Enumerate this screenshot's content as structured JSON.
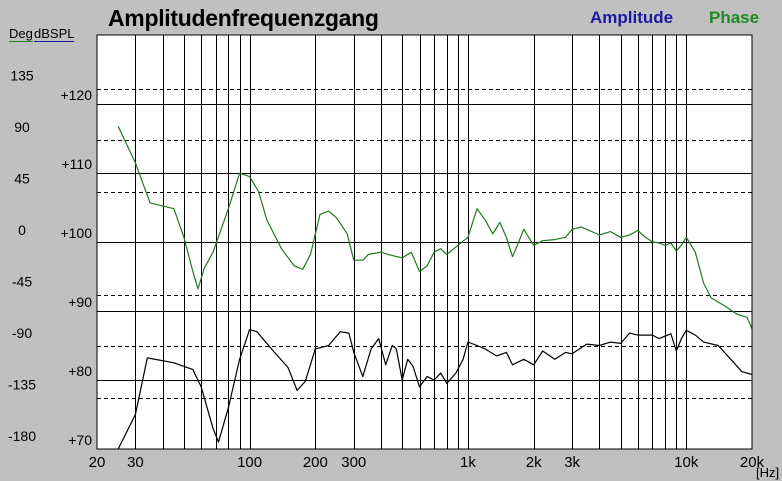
{
  "title": "Amplitudenfrequenzgang",
  "legend": {
    "amplitude": "Amplitude",
    "phase": "Phase"
  },
  "units": {
    "deg": "Deg",
    "db": "dBSPL",
    "x": "[Hz]"
  },
  "colors": {
    "amplitude": "#1a1aa0",
    "phase": "#1e8a1e",
    "curve_amplitude": "#000000",
    "curve_phase": "#1e7a1e",
    "background": "#c0c0c0",
    "plot_bg": "#ffffff"
  },
  "chart_data": {
    "type": "line",
    "title": "Amplitudenfrequenzgang",
    "x_scale": "log",
    "xlim": [
      20,
      20000
    ],
    "x_tick_labels": [
      {
        "x": 20,
        "label": "20"
      },
      {
        "x": 30,
        "label": "30"
      },
      {
        "x": 100,
        "label": "100"
      },
      {
        "x": 200,
        "label": "200"
      },
      {
        "x": 300,
        "label": "300"
      },
      {
        "x": 1000,
        "label": "1k"
      },
      {
        "x": 2000,
        "label": "2k"
      },
      {
        "x": 3000,
        "label": "3k"
      },
      {
        "x": 10000,
        "label": "10k"
      },
      {
        "x": 20000,
        "label": "20k"
      }
    ],
    "y_left_labels": [
      "135",
      "90",
      "45",
      "0",
      "-45",
      "-90",
      "-135",
      "-180"
    ],
    "y_right_labels": [
      "+120",
      "+110",
      "+100",
      "+90",
      "+80",
      "+70"
    ],
    "ylim_amplitude": [
      70,
      125
    ],
    "ylim_phase": [
      -180,
      180
    ],
    "grid": true,
    "series": [
      {
        "name": "Amplitude",
        "unit": "dBSPL",
        "points": [
          [
            25,
            70
          ],
          [
            30,
            75
          ],
          [
            34,
            83.2
          ],
          [
            45,
            82.5
          ],
          [
            55,
            81.5
          ],
          [
            60,
            79
          ],
          [
            68,
            73
          ],
          [
            72,
            71
          ],
          [
            80,
            76
          ],
          [
            90,
            83
          ],
          [
            100,
            87.3
          ],
          [
            108,
            87
          ],
          [
            130,
            84
          ],
          [
            150,
            81.8
          ],
          [
            165,
            78.5
          ],
          [
            180,
            79.8
          ],
          [
            200,
            84.5
          ],
          [
            230,
            85
          ],
          [
            260,
            87
          ],
          [
            285,
            86.8
          ],
          [
            300,
            84
          ],
          [
            330,
            80.5
          ],
          [
            360,
            84.5
          ],
          [
            390,
            86
          ],
          [
            420,
            82.2
          ],
          [
            450,
            85
          ],
          [
            470,
            84.5
          ],
          [
            500,
            80
          ],
          [
            530,
            83
          ],
          [
            560,
            82
          ],
          [
            600,
            79
          ],
          [
            650,
            80.5
          ],
          [
            700,
            80
          ],
          [
            750,
            81
          ],
          [
            800,
            79.5
          ],
          [
            880,
            81
          ],
          [
            950,
            83
          ],
          [
            1000,
            85.5
          ],
          [
            1100,
            85
          ],
          [
            1200,
            84.5
          ],
          [
            1350,
            83.5
          ],
          [
            1500,
            84
          ],
          [
            1600,
            82.2
          ],
          [
            1800,
            83
          ],
          [
            2000,
            82.2
          ],
          [
            2200,
            84.2
          ],
          [
            2500,
            83
          ],
          [
            2800,
            84
          ],
          [
            3000,
            83.8
          ],
          [
            3500,
            85.2
          ],
          [
            4000,
            85
          ],
          [
            4500,
            85.5
          ],
          [
            5000,
            85.3
          ],
          [
            5500,
            86.8
          ],
          [
            6000,
            86.5
          ],
          [
            7000,
            86.5
          ],
          [
            7500,
            86
          ],
          [
            8500,
            86.7
          ],
          [
            9000,
            84.2
          ],
          [
            9500,
            86
          ],
          [
            10000,
            87.2
          ],
          [
            11000,
            86.5
          ],
          [
            12000,
            85.5
          ],
          [
            14000,
            85
          ],
          [
            16000,
            83
          ],
          [
            18000,
            81.2
          ],
          [
            20000,
            80.8
          ]
        ]
      },
      {
        "name": "Phase",
        "unit": "Deg",
        "points": [
          [
            25,
            102
          ],
          [
            30,
            70
          ],
          [
            35,
            35
          ],
          [
            45,
            30
          ],
          [
            50,
            5
          ],
          [
            55,
            -25
          ],
          [
            58,
            -40
          ],
          [
            62,
            -22
          ],
          [
            68,
            -8
          ],
          [
            80,
            30
          ],
          [
            90,
            61
          ],
          [
            100,
            58
          ],
          [
            110,
            45
          ],
          [
            120,
            20
          ],
          [
            140,
            -5
          ],
          [
            160,
            -20
          ],
          [
            175,
            -23
          ],
          [
            190,
            -10
          ],
          [
            210,
            25
          ],
          [
            230,
            28
          ],
          [
            250,
            22
          ],
          [
            280,
            8
          ],
          [
            300,
            -15
          ],
          [
            330,
            -15
          ],
          [
            350,
            -10
          ],
          [
            400,
            -8
          ],
          [
            430,
            -10
          ],
          [
            500,
            -13
          ],
          [
            550,
            -8
          ],
          [
            600,
            -25
          ],
          [
            650,
            -20
          ],
          [
            700,
            -8
          ],
          [
            750,
            -5
          ],
          [
            800,
            -10
          ],
          [
            900,
            -2
          ],
          [
            1000,
            5
          ],
          [
            1100,
            30
          ],
          [
            1200,
            20
          ],
          [
            1300,
            8
          ],
          [
            1400,
            18
          ],
          [
            1500,
            5
          ],
          [
            1600,
            -12
          ],
          [
            1700,
            0
          ],
          [
            1800,
            12
          ],
          [
            2000,
            -2
          ],
          [
            2200,
            2
          ],
          [
            2500,
            3
          ],
          [
            2800,
            5
          ],
          [
            3000,
            12
          ],
          [
            3300,
            14
          ],
          [
            3500,
            12
          ],
          [
            4000,
            7
          ],
          [
            4500,
            10
          ],
          [
            5000,
            5
          ],
          [
            5500,
            7
          ],
          [
            6000,
            11
          ],
          [
            6500,
            5
          ],
          [
            7000,
            1
          ],
          [
            7500,
            0
          ],
          [
            8000,
            -2
          ],
          [
            8500,
            0
          ],
          [
            9000,
            -7
          ],
          [
            9500,
            -2
          ],
          [
            10000,
            5
          ],
          [
            11000,
            -8
          ],
          [
            12000,
            -35
          ],
          [
            13000,
            -48
          ],
          [
            15000,
            -55
          ],
          [
            17000,
            -62
          ],
          [
            19000,
            -65
          ],
          [
            20000,
            -75
          ]
        ]
      }
    ]
  }
}
